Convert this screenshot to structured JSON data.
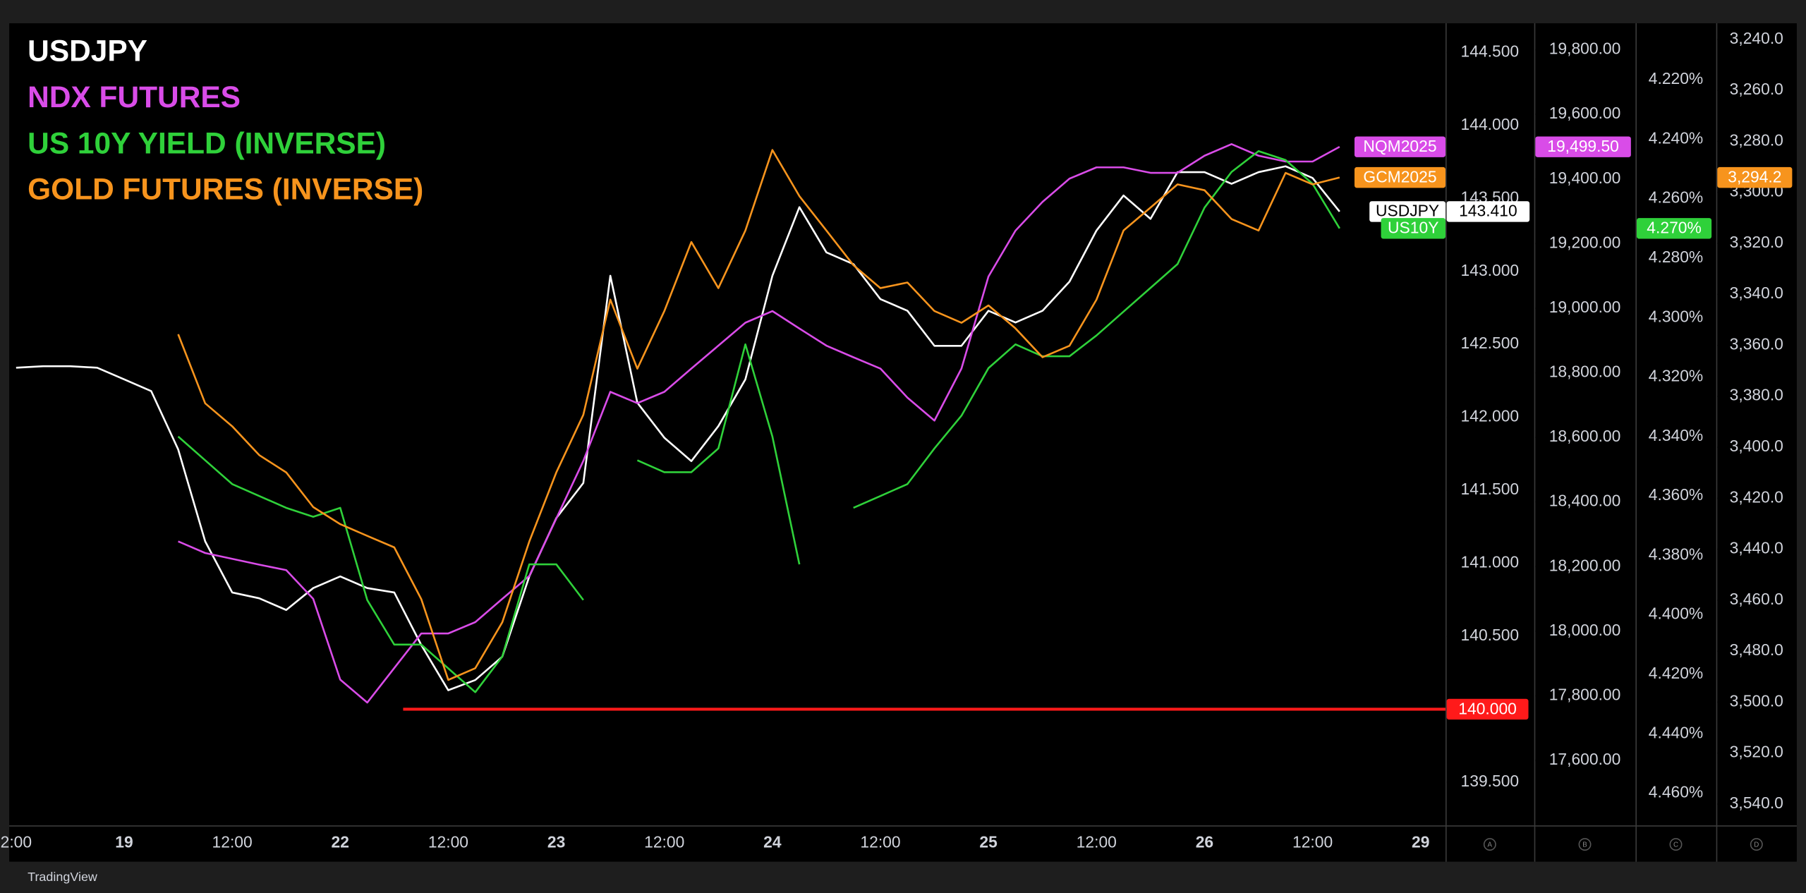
{
  "chart_data": {
    "type": "line",
    "brand": "TradingView",
    "categories": [
      "2:00",
      null,
      null,
      null,
      "19",
      null,
      null,
      null,
      "12:00",
      null,
      null,
      null,
      "22",
      null,
      null,
      null,
      "12:00",
      null,
      null,
      null,
      "23",
      null,
      null,
      null,
      "12:00",
      null,
      null,
      null,
      "24",
      null,
      null,
      null,
      "12:00",
      null,
      null,
      null,
      "25",
      null,
      null,
      null,
      "12:00",
      null,
      null,
      null,
      "26",
      null,
      null,
      null,
      "12:00",
      null,
      null,
      null,
      "29"
    ],
    "series": [
      {
        "name": "USDJPY",
        "symbol": "USDJPY",
        "color": "#ffffff",
        "axis": "y",
        "last": 143.41,
        "last_label": "143.410",
        "values": [
          142.34,
          142.35,
          142.35,
          142.34,
          142.26,
          142.18,
          141.78,
          141.15,
          140.8,
          140.76,
          140.68,
          140.83,
          140.91,
          140.83,
          140.8,
          140.44,
          140.13,
          140.2,
          140.36,
          140.91,
          141.31,
          141.55,
          142.97,
          142.1,
          141.86,
          141.7,
          141.94,
          142.26,
          142.97,
          143.44,
          143.13,
          143.05,
          142.81,
          142.73,
          142.49,
          142.49,
          142.73,
          142.65,
          142.73,
          142.93,
          143.28,
          143.52,
          143.36,
          143.68,
          143.68,
          143.6,
          143.68,
          143.72,
          143.64,
          143.41,
          null,
          null,
          null
        ]
      },
      {
        "name": "NDX FUTURES",
        "symbol": "NQM2025",
        "color": "#d94ce8",
        "axis": "y2",
        "last": 19499.5,
        "last_label": "19,499.50",
        "values": [
          null,
          null,
          null,
          null,
          null,
          null,
          18278,
          18242,
          18224,
          18206,
          18189,
          18100,
          17850,
          17779,
          17886,
          17993,
          17993,
          18028,
          18100,
          18171,
          18349,
          18527,
          18741,
          18706,
          18741,
          18813,
          18884,
          18955,
          18991,
          18937,
          18884,
          18848,
          18813,
          18723,
          18652,
          18813,
          19098,
          19240,
          19329,
          19401,
          19436,
          19436,
          19419,
          19419,
          19472,
          19508,
          19472,
          19454,
          19454,
          19499.5,
          null,
          null,
          null
        ]
      },
      {
        "name": "US 10Y YIELD (INVERSE)",
        "symbol": "US10Y",
        "color": "#2fd13a",
        "axis": "y3",
        "last": 4.27,
        "last_label": "4.270%",
        "values": [
          null,
          null,
          null,
          null,
          null,
          null,
          4.34,
          4.348,
          4.356,
          4.36,
          4.364,
          4.367,
          4.364,
          4.395,
          4.41,
          4.41,
          4.418,
          4.426,
          4.414,
          4.383,
          4.383,
          4.395,
          null,
          4.348,
          4.352,
          4.352,
          4.344,
          4.309,
          4.34,
          4.383,
          null,
          4.364,
          4.36,
          4.356,
          4.344,
          4.333,
          4.317,
          4.309,
          4.313,
          4.313,
          4.306,
          4.298,
          4.29,
          4.282,
          4.263,
          4.251,
          4.244,
          4.247,
          4.255,
          4.27,
          null,
          null,
          null
        ]
      },
      {
        "name": "GOLD FUTURES (INVERSE)",
        "symbol": "GCM2025",
        "color": "#f7941d",
        "axis": "y4",
        "last": 3294.2,
        "last_label": "3,294.2",
        "values": [
          null,
          null,
          null,
          null,
          null,
          null,
          3355.7,
          3382.8,
          3391.8,
          3403.1,
          3409.9,
          3423.5,
          3430.2,
          3434.8,
          3439.3,
          3459.6,
          3491.3,
          3486.7,
          3468.7,
          3437,
          3409.9,
          3387.3,
          3342.1,
          3369.2,
          3346.6,
          3319.5,
          3337.6,
          3315,
          3283.4,
          3301.5,
          3315,
          3328.6,
          3337.6,
          3335.4,
          3346.6,
          3351.2,
          3344.4,
          3353.4,
          3364.7,
          3360.2,
          3342.1,
          3315,
          3306,
          3296.9,
          3299.2,
          3310.5,
          3315,
          3292.4,
          3296.9,
          3294.2,
          null,
          null,
          null
        ]
      }
    ],
    "hline": {
      "value": 140,
      "label": "140.000",
      "color": "#ff1a1a"
    },
    "axis_letters": [
      "A",
      "B",
      "C",
      "D"
    ],
    "ylim": [
      139.2,
      144.7
    ],
    "yticks": [
      {
        "value": 139.5,
        "label": "139.500"
      },
      {
        "value": 140,
        "label": "140.000"
      },
      {
        "value": 140.5,
        "label": "140.500"
      },
      {
        "value": 141,
        "label": "141.000"
      },
      {
        "value": 141.5,
        "label": "141.500"
      },
      {
        "value": 142,
        "label": "142.000"
      },
      {
        "value": 142.5,
        "label": "142.500"
      },
      {
        "value": 143,
        "label": "143.000"
      },
      {
        "value": 143.5,
        "label": "143.500"
      },
      {
        "value": 144,
        "label": "144.000"
      },
      {
        "value": 144.5,
        "label": "144.500"
      }
    ],
    "y2lim": [
      17397,
      19882
    ],
    "y2ticks": [
      {
        "value": 17600,
        "label": "17,600.00"
      },
      {
        "value": 17800,
        "label": "17,800.00"
      },
      {
        "value": 18000,
        "label": "18,000.00"
      },
      {
        "value": 18200,
        "label": "18,200.00"
      },
      {
        "value": 18400,
        "label": "18,400.00"
      },
      {
        "value": 18600,
        "label": "18,600.00"
      },
      {
        "value": 18800,
        "label": "18,800.00"
      },
      {
        "value": 19000,
        "label": "19,000.00"
      },
      {
        "value": 19200,
        "label": "19,200.00"
      },
      {
        "value": 19400,
        "label": "19,400.00"
      },
      {
        "value": 19600,
        "label": "19,600.00"
      },
      {
        "value": 19800,
        "label": "19,800.00"
      }
    ],
    "y3lim": [
      4.471,
      4.201
    ],
    "y3ticks": [
      {
        "value": 4.22,
        "label": "4.220%"
      },
      {
        "value": 4.24,
        "label": "4.240%"
      },
      {
        "value": 4.26,
        "label": "4.260%"
      },
      {
        "value": 4.28,
        "label": "4.280%"
      },
      {
        "value": 4.3,
        "label": "4.300%"
      },
      {
        "value": 4.32,
        "label": "4.320%"
      },
      {
        "value": 4.34,
        "label": "4.340%"
      },
      {
        "value": 4.36,
        "label": "4.360%"
      },
      {
        "value": 4.38,
        "label": "4.380%"
      },
      {
        "value": 4.4,
        "label": "4.400%"
      },
      {
        "value": 4.42,
        "label": "4.420%"
      },
      {
        "value": 4.44,
        "label": "4.440%"
      },
      {
        "value": 4.46,
        "label": "4.460%"
      }
    ],
    "y4lim": [
      3548.6,
      3233.7
    ],
    "y4ticks": [
      {
        "value": 3240,
        "label": "3,240.0"
      },
      {
        "value": 3260,
        "label": "3,260.0"
      },
      {
        "value": 3280,
        "label": "3,280.0"
      },
      {
        "value": 3300,
        "label": "3,300.0"
      },
      {
        "value": 3320,
        "label": "3,320.0"
      },
      {
        "value": 3340,
        "label": "3,340.0"
      },
      {
        "value": 3360,
        "label": "3,360.0"
      },
      {
        "value": 3380,
        "label": "3,380.0"
      },
      {
        "value": 3400,
        "label": "3,400.0"
      },
      {
        "value": 3420,
        "label": "3,420.0"
      },
      {
        "value": 3440,
        "label": "3,440.0"
      },
      {
        "value": 3460,
        "label": "3,460.0"
      },
      {
        "value": 3480,
        "label": "3,480.0"
      },
      {
        "value": 3500,
        "label": "3,500.0"
      },
      {
        "value": 3520,
        "label": "3,520.0"
      },
      {
        "value": 3540,
        "label": "3,540.0"
      }
    ]
  }
}
